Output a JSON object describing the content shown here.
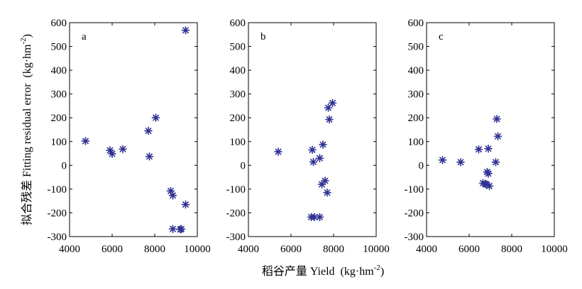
{
  "xlabel": {
    "zh": "稻谷产量 Yield",
    "unit_pre": "(kg·hm",
    "unit_exp": "-2",
    "unit_post": ")"
  },
  "ylabel": {
    "zh": "拟合残差 Fitting residual error",
    "unit_pre": "(kg·hm",
    "unit_exp": "-2",
    "unit_post": ")"
  },
  "colors": {
    "marker": "#2e3192",
    "axis": "#000000"
  },
  "chart_data": [
    {
      "type": "scatter",
      "panel_label": "a",
      "marker": "asterisk",
      "xlim": [
        4000,
        10000
      ],
      "ylim": [
        -300,
        600
      ],
      "xticks": [
        4000,
        6000,
        8000,
        10000
      ],
      "yticks": [
        -300,
        -200,
        -100,
        0,
        100,
        200,
        300,
        400,
        500,
        600
      ],
      "points": [
        [
          4750,
          102
        ],
        [
          5900,
          63
        ],
        [
          6000,
          48
        ],
        [
          6500,
          68
        ],
        [
          7700,
          145
        ],
        [
          7750,
          37
        ],
        [
          8050,
          200
        ],
        [
          8750,
          -108
        ],
        [
          8850,
          -127
        ],
        [
          8850,
          -268
        ],
        [
          9200,
          -270
        ],
        [
          9250,
          -268
        ],
        [
          9450,
          -165
        ],
        [
          9450,
          568
        ]
      ]
    },
    {
      "type": "scatter",
      "panel_label": "b",
      "marker": "asterisk",
      "xlim": [
        4000,
        10000
      ],
      "ylim": [
        -300,
        600
      ],
      "xticks": [
        4000,
        6000,
        8000,
        10000
      ],
      "yticks": [
        -300,
        -200,
        -100,
        0,
        100,
        200,
        300,
        400,
        500,
        600
      ],
      "points": [
        [
          5400,
          57
        ],
        [
          6950,
          -218
        ],
        [
          7000,
          65
        ],
        [
          7050,
          14
        ],
        [
          7100,
          -218
        ],
        [
          7350,
          -218
        ],
        [
          7350,
          30
        ],
        [
          7450,
          -80
        ],
        [
          7500,
          87
        ],
        [
          7600,
          -65
        ],
        [
          7700,
          -115
        ],
        [
          7750,
          242
        ],
        [
          7800,
          193
        ],
        [
          7950,
          262
        ]
      ]
    },
    {
      "type": "scatter",
      "panel_label": "c",
      "marker": "asterisk",
      "xlim": [
        4000,
        10000
      ],
      "ylim": [
        -300,
        600
      ],
      "xticks": [
        4000,
        6000,
        8000,
        10000
      ],
      "yticks": [
        -300,
        -200,
        -100,
        0,
        100,
        200,
        300,
        400,
        500,
        600
      ],
      "points": [
        [
          4750,
          22
        ],
        [
          5600,
          13
        ],
        [
          6450,
          67
        ],
        [
          6650,
          -75
        ],
        [
          6750,
          -78
        ],
        [
          6800,
          -80
        ],
        [
          6850,
          -28
        ],
        [
          6900,
          -35
        ],
        [
          6900,
          70
        ],
        [
          6950,
          -87
        ],
        [
          7250,
          13
        ],
        [
          7300,
          195
        ],
        [
          7350,
          122
        ]
      ]
    }
  ]
}
